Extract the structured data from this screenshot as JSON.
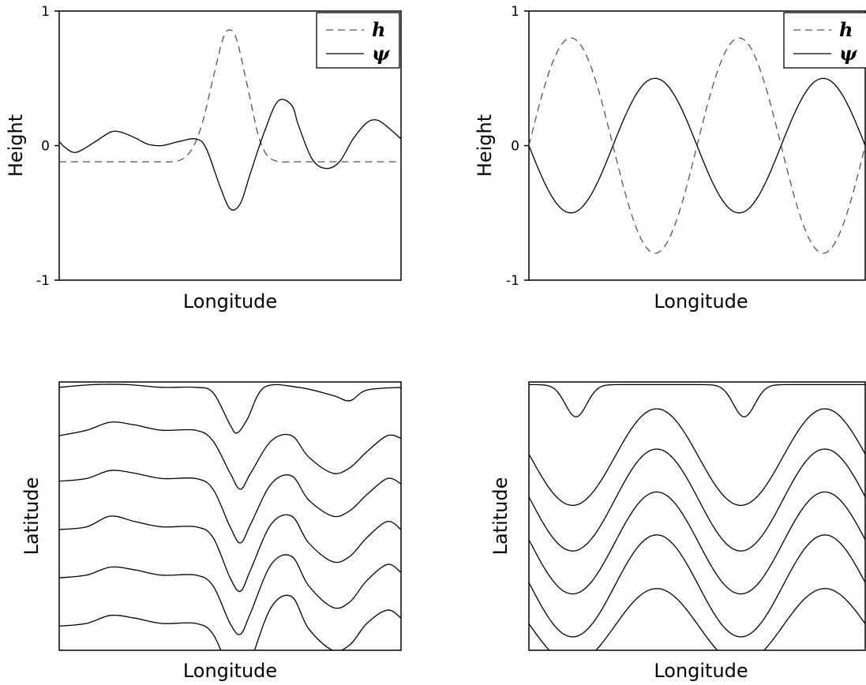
{
  "chart_data": [
    {
      "type": "line",
      "xlabel": "Longitude",
      "ylabel": "Height",
      "ylim": [
        -1,
        1
      ],
      "yticks": [
        "1",
        "0",
        "-1"
      ],
      "legend": {
        "position": "top-right",
        "entries": [
          {
            "label": "h",
            "style": "dashed"
          },
          {
            "label": "ψ",
            "style": "solid"
          }
        ]
      },
      "series": [
        {
          "name": "h",
          "style": "dashed",
          "x": [
            0,
            0.05,
            0.1,
            0.15,
            0.2,
            0.25,
            0.3,
            0.33,
            0.36,
            0.39,
            0.42,
            0.45,
            0.48,
            0.5,
            0.52,
            0.55,
            0.58,
            0.6,
            0.62,
            0.65,
            0.7,
            0.8,
            0.9,
            1.0
          ],
          "y": [
            -0.12,
            -0.12,
            -0.12,
            -0.12,
            -0.12,
            -0.12,
            -0.12,
            -0.12,
            -0.1,
            -0.02,
            0.18,
            0.5,
            0.8,
            0.86,
            0.78,
            0.45,
            0.1,
            -0.04,
            -0.1,
            -0.12,
            -0.12,
            -0.12,
            -0.12,
            -0.12
          ]
        },
        {
          "name": "ψ",
          "style": "solid",
          "x": [
            0,
            0.02,
            0.05,
            0.1,
            0.15,
            0.18,
            0.22,
            0.26,
            0.3,
            0.35,
            0.4,
            0.43,
            0.47,
            0.5,
            0.53,
            0.56,
            0.6,
            0.64,
            0.68,
            0.7,
            0.74,
            0.78,
            0.82,
            0.86,
            0.9,
            0.93,
            0.96,
            1.0
          ],
          "y": [
            0.03,
            -0.02,
            -0.05,
            0.02,
            0.1,
            0.1,
            0.06,
            0.01,
            0.0,
            0.03,
            0.05,
            -0.02,
            -0.3,
            -0.47,
            -0.43,
            -0.2,
            0.1,
            0.33,
            0.3,
            0.15,
            -0.1,
            -0.17,
            -0.12,
            0.05,
            0.17,
            0.19,
            0.14,
            0.05
          ]
        }
      ]
    },
    {
      "type": "line",
      "xlabel": "Longitude",
      "ylabel": "Height",
      "ylim": [
        -1,
        1
      ],
      "yticks": [
        "1",
        "0",
        "-1"
      ],
      "legend": {
        "position": "top-right",
        "entries": [
          {
            "label": "h",
            "style": "dashed"
          },
          {
            "label": "ψ",
            "style": "solid"
          }
        ]
      },
      "series": [
        {
          "name": "h",
          "style": "dashed",
          "x": [
            0,
            0.125,
            0.375,
            0.625,
            0.875,
            1.0
          ],
          "y": [
            0.1,
            0.8,
            -0.8,
            0.8,
            -0.8,
            -0.1
          ]
        },
        {
          "name": "ψ",
          "style": "solid",
          "x": [
            0,
            0.125,
            0.375,
            0.625,
            0.875,
            1.0
          ],
          "y": [
            0.05,
            -0.5,
            0.5,
            -0.5,
            0.5,
            0.2
          ]
        }
      ]
    },
    {
      "type": "line",
      "xlabel": "Longitude",
      "ylabel": "Latitude",
      "note_contours": "streamlines of the localized flow (top-left panel)",
      "series": [
        {
          "x": [
            0,
            0.1,
            0.2,
            0.3,
            0.4,
            0.45,
            0.5,
            0.52,
            0.55,
            0.6,
            0.7,
            0.8,
            0.85,
            0.9,
            1.0
          ],
          "y": [
            0.98,
            0.99,
            0.99,
            0.98,
            0.98,
            0.96,
            0.84,
            0.81,
            0.86,
            0.98,
            0.98,
            0.95,
            0.93,
            0.97,
            0.98
          ]
        },
        {
          "x": [
            0,
            0.08,
            0.15,
            0.22,
            0.3,
            0.4,
            0.45,
            0.5,
            0.53,
            0.56,
            0.62,
            0.68,
            0.73,
            0.8,
            0.85,
            0.9,
            0.96,
            1.0
          ],
          "y": [
            0.8,
            0.82,
            0.85,
            0.84,
            0.82,
            0.82,
            0.78,
            0.66,
            0.6,
            0.66,
            0.78,
            0.8,
            0.72,
            0.66,
            0.68,
            0.74,
            0.8,
            0.79
          ]
        },
        {
          "x": [
            0,
            0.08,
            0.15,
            0.22,
            0.3,
            0.4,
            0.45,
            0.5,
            0.53,
            0.56,
            0.62,
            0.68,
            0.73,
            0.8,
            0.85,
            0.9,
            0.96,
            1.0
          ],
          "y": [
            0.63,
            0.64,
            0.67,
            0.66,
            0.64,
            0.64,
            0.6,
            0.46,
            0.4,
            0.47,
            0.62,
            0.65,
            0.56,
            0.5,
            0.52,
            0.58,
            0.64,
            0.62
          ]
        },
        {
          "x": [
            0,
            0.08,
            0.15,
            0.22,
            0.3,
            0.4,
            0.45,
            0.5,
            0.53,
            0.56,
            0.62,
            0.68,
            0.73,
            0.8,
            0.85,
            0.9,
            0.96,
            1.0
          ],
          "y": [
            0.45,
            0.46,
            0.5,
            0.48,
            0.46,
            0.46,
            0.42,
            0.27,
            0.22,
            0.3,
            0.47,
            0.5,
            0.4,
            0.33,
            0.35,
            0.42,
            0.48,
            0.45
          ]
        },
        {
          "x": [
            0,
            0.08,
            0.15,
            0.22,
            0.3,
            0.4,
            0.45,
            0.5,
            0.53,
            0.56,
            0.62,
            0.68,
            0.73,
            0.8,
            0.85,
            0.9,
            0.96,
            1.0
          ],
          "y": [
            0.27,
            0.28,
            0.31,
            0.3,
            0.28,
            0.28,
            0.24,
            0.1,
            0.06,
            0.14,
            0.32,
            0.35,
            0.24,
            0.16,
            0.18,
            0.26,
            0.32,
            0.29
          ]
        },
        {
          "x": [
            0,
            0.08,
            0.15,
            0.22,
            0.3,
            0.4,
            0.45,
            0.5,
            0.53,
            0.56,
            0.62,
            0.68,
            0.73,
            0.8,
            0.85,
            0.9,
            0.96,
            1.0
          ],
          "y": [
            0.09,
            0.1,
            0.13,
            0.12,
            0.1,
            0.1,
            0.06,
            -0.08,
            -0.12,
            -0.04,
            0.16,
            0.2,
            0.08,
            0.0,
            0.02,
            0.1,
            0.15,
            0.12
          ]
        }
      ]
    },
    {
      "type": "line",
      "xlabel": "Longitude",
      "ylabel": "Latitude",
      "note_contours": "streamlines of the wave flow (top-right panel)",
      "series": [
        {
          "x": [
            0,
            0.06,
            0.14,
            0.25,
            0.4,
            0.55,
            0.64,
            0.75,
            0.9,
            1.0
          ],
          "y": [
            0.98,
            0.9,
            0.86,
            0.96,
            1.0,
            0.96,
            0.86,
            0.96,
            1.0,
            0.99
          ]
        },
        {
          "x": [
            0,
            0.05,
            0.1,
            0.15,
            0.25,
            0.35,
            0.4,
            0.5,
            0.6,
            0.7,
            0.75,
            0.8,
            0.9,
            1.0
          ],
          "y": [
            0.78,
            0.66,
            0.55,
            0.53,
            0.62,
            0.82,
            0.88,
            0.82,
            0.62,
            0.53,
            0.55,
            0.62,
            0.82,
            0.88
          ]
        },
        {
          "x": [
            0,
            0.05,
            0.1,
            0.15,
            0.25,
            0.35,
            0.4,
            0.5,
            0.6,
            0.7,
            0.75,
            0.8,
            0.9,
            1.0
          ],
          "y": [
            0.62,
            0.5,
            0.4,
            0.38,
            0.48,
            0.7,
            0.76,
            0.7,
            0.48,
            0.38,
            0.4,
            0.48,
            0.7,
            0.76
          ]
        },
        {
          "x": [
            0,
            0.05,
            0.1,
            0.15,
            0.25,
            0.35,
            0.4,
            0.5,
            0.6,
            0.7,
            0.75,
            0.8,
            0.9,
            1.0
          ],
          "y": [
            0.46,
            0.33,
            0.24,
            0.22,
            0.32,
            0.54,
            0.6,
            0.54,
            0.32,
            0.22,
            0.24,
            0.32,
            0.54,
            0.6
          ]
        },
        {
          "x": [
            0,
            0.05,
            0.1,
            0.15,
            0.25,
            0.35,
            0.4,
            0.5,
            0.6,
            0.7,
            0.75,
            0.8,
            0.9,
            1.0
          ],
          "y": [
            0.3,
            0.17,
            0.08,
            0.06,
            0.16,
            0.38,
            0.44,
            0.38,
            0.16,
            0.06,
            0.08,
            0.16,
            0.38,
            0.44
          ]
        },
        {
          "x": [
            0,
            0.05,
            0.1,
            0.15,
            0.25,
            0.35,
            0.4,
            0.5,
            0.6,
            0.7,
            0.75,
            0.8,
            0.9,
            1.0
          ],
          "y": [
            0.15,
            0.05,
            0.01,
            0.0,
            0.06,
            0.22,
            0.28,
            0.22,
            0.06,
            0.0,
            0.01,
            0.06,
            0.22,
            0.28
          ]
        }
      ]
    }
  ]
}
